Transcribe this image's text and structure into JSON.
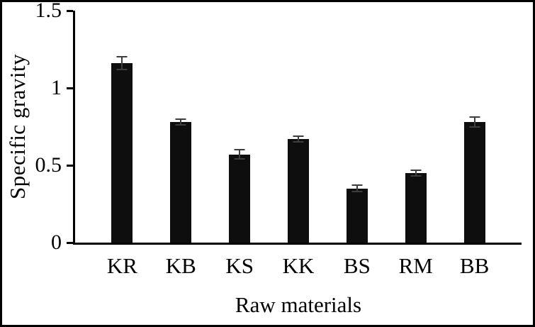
{
  "chart_data": {
    "type": "bar",
    "title": "",
    "xlabel": "Raw materials",
    "ylabel": "Specific gravity",
    "categories": [
      "KR",
      "KB",
      "KS",
      "KK",
      "BS",
      "RM",
      "BB"
    ],
    "values": [
      1.16,
      0.78,
      0.57,
      0.67,
      0.35,
      0.45,
      0.78
    ],
    "errors": [
      0.04,
      0.02,
      0.03,
      0.02,
      0.02,
      0.02,
      0.03
    ],
    "ylim": [
      0,
      1.5
    ],
    "yticks": [
      0,
      0.5,
      1,
      1.5
    ],
    "ytick_labels": [
      "0",
      "0.5",
      "1",
      "1.5"
    ],
    "bar_color": "#0e0e0e",
    "error_bar_color": "#3d3d3d",
    "axis_color": "#000000",
    "grid": false,
    "legend": null
  }
}
